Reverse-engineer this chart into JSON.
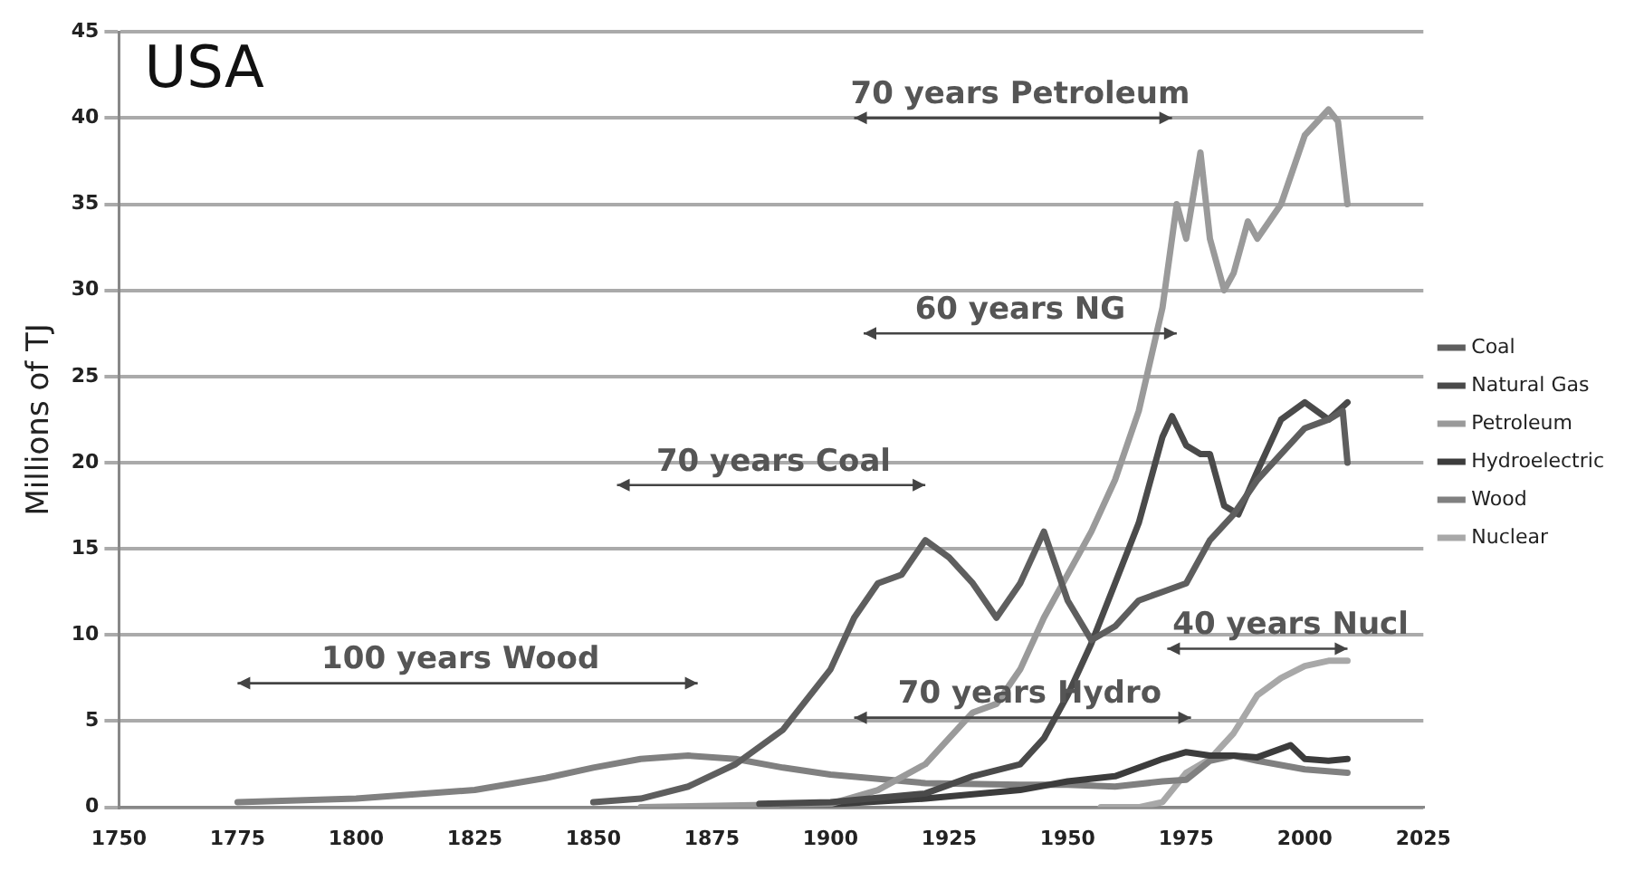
{
  "chart_data": {
    "type": "line",
    "title": "USA",
    "ylabel": "Millions of TJ",
    "xlim": [
      1750,
      2025
    ],
    "xticks": [
      1750,
      1775,
      1800,
      1825,
      1850,
      1875,
      1900,
      1925,
      1950,
      1975,
      2000,
      2025
    ],
    "ylim": [
      0,
      45
    ],
    "yticks": [
      0,
      5,
      10,
      15,
      20,
      25,
      30,
      35,
      40,
      45
    ],
    "grid": "y",
    "legend": "right",
    "marker": "none",
    "line_style": "solid",
    "annotations": [
      "70 years Petroleum",
      "60 years NG",
      "70 years Coal",
      "100 years Wood",
      "70 years Hydro",
      "40 years Nucl"
    ],
    "series": [
      {
        "name": "Coal",
        "color": "#5e5e5e",
        "x": [
          1850,
          1860,
          1870,
          1880,
          1890,
          1900,
          1905,
          1910,
          1915,
          1920,
          1925,
          1930,
          1935,
          1940,
          1945,
          1950,
          1955,
          1960,
          1965,
          1970,
          1975,
          1980,
          1985,
          1990,
          1995,
          2000,
          2005,
          2008,
          2009
        ],
        "values": [
          0.3,
          0.5,
          1.2,
          2.5,
          4.5,
          8,
          11,
          13,
          13.5,
          15.5,
          14.5,
          13,
          11,
          13,
          16,
          12,
          9.7,
          10.5,
          12,
          12.5,
          13,
          15.5,
          17,
          19,
          20.5,
          22,
          22.5,
          23,
          20
        ]
      },
      {
        "name": "Natural Gas",
        "color": "#4a4a4a",
        "x": [
          1885,
          1900,
          1920,
          1930,
          1940,
          1945,
          1950,
          1955,
          1960,
          1965,
          1970,
          1972,
          1975,
          1978,
          1980,
          1983,
          1986,
          1990,
          1995,
          2000,
          2005,
          2009
        ],
        "values": [
          0.2,
          0.3,
          0.8,
          1.8,
          2.5,
          4,
          6.5,
          9.5,
          13,
          16.5,
          21.5,
          22.7,
          21,
          20.5,
          20.5,
          17.5,
          17,
          19.5,
          22.5,
          23.5,
          22.5,
          23.5
        ]
      },
      {
        "name": "Petroleum",
        "color": "#9a9a9a",
        "x": [
          1860,
          1900,
          1910,
          1920,
          1925,
          1930,
          1935,
          1940,
          1945,
          1950,
          1955,
          1960,
          1965,
          1970,
          1973,
          1975,
          1978,
          1980,
          1983,
          1985,
          1988,
          1990,
          1995,
          2000,
          2005,
          2007,
          2009
        ],
        "values": [
          0,
          0.2,
          1,
          2.5,
          4,
          5.5,
          6,
          8,
          11,
          13.5,
          16,
          19,
          23,
          29,
          35,
          33,
          38,
          33,
          30,
          31,
          34,
          33,
          35,
          39,
          40.5,
          39.8,
          35
        ]
      },
      {
        "name": "Hydroelectric",
        "color": "#3c3c3c",
        "x": [
          1890,
          1920,
          1940,
          1950,
          1960,
          1970,
          1975,
          1980,
          1985,
          1990,
          1997,
          2000,
          2005,
          2009
        ],
        "values": [
          0,
          0.5,
          1,
          1.5,
          1.8,
          2.8,
          3.2,
          3,
          3,
          2.9,
          3.6,
          2.8,
          2.7,
          2.8
        ]
      },
      {
        "name": "Wood",
        "color": "#808080",
        "x": [
          1775,
          1800,
          1825,
          1840,
          1850,
          1860,
          1870,
          1880,
          1890,
          1900,
          1920,
          1940,
          1950,
          1960,
          1970,
          1975,
          1980,
          1985,
          1990,
          2000,
          2009
        ],
        "values": [
          0.3,
          0.5,
          1,
          1.7,
          2.3,
          2.8,
          3,
          2.8,
          2.3,
          1.9,
          1.4,
          1.3,
          1.3,
          1.2,
          1.5,
          1.6,
          2.7,
          3,
          2.7,
          2.2,
          2
        ]
      },
      {
        "name": "Nuclear",
        "color": "#a8a8a8",
        "x": [
          1957,
          1965,
          1970,
          1975,
          1980,
          1985,
          1990,
          1995,
          2000,
          2005,
          2009
        ],
        "values": [
          0,
          0,
          0.3,
          2,
          2.8,
          4.3,
          6.5,
          7.5,
          8.2,
          8.5,
          8.5
        ]
      }
    ]
  }
}
